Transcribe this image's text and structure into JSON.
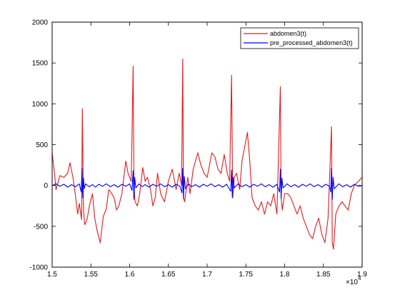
{
  "chart_data": {
    "type": "line",
    "title": "",
    "xlabel": "",
    "ylabel": "",
    "x_exponent_label": "×10",
    "x_exponent_power": "4",
    "xlim": [
      1.5,
      1.9
    ],
    "ylim": [
      -1000,
      2000
    ],
    "x_ticks": [
      1.5,
      1.55,
      1.6,
      1.65,
      1.7,
      1.75,
      1.8,
      1.85,
      1.9
    ],
    "x_tick_labels": [
      "1.5",
      "1.55",
      "1.6",
      "1.65",
      "1.7",
      "1.75",
      "1.8",
      "1.85",
      "1.9"
    ],
    "y_ticks": [
      -1000,
      -500,
      0,
      500,
      1000,
      1500,
      2000
    ],
    "y_tick_labels": [
      "-1000",
      "-500",
      "0",
      "500",
      "1000",
      "1500",
      "2000"
    ],
    "grid": false,
    "legend": "top-right",
    "series": [
      {
        "name": "abdomen3(t)",
        "color": "#e31a1c",
        "x": [
          1.5,
          1.503,
          1.505,
          1.51,
          1.515,
          1.52,
          1.523,
          1.527,
          1.53,
          1.533,
          1.535,
          1.538,
          1.539,
          1.5405,
          1.542,
          1.545,
          1.548,
          1.552,
          1.555,
          1.558,
          1.562,
          1.566,
          1.57,
          1.573,
          1.577,
          1.58,
          1.583,
          1.586,
          1.59,
          1.595,
          1.598,
          1.602,
          1.6045,
          1.6055,
          1.607,
          1.61,
          1.613,
          1.617,
          1.62,
          1.623,
          1.627,
          1.63,
          1.633,
          1.636,
          1.64,
          1.645,
          1.65,
          1.655,
          1.66,
          1.664,
          1.667,
          1.6685,
          1.6695,
          1.671,
          1.675,
          1.678,
          1.682,
          1.685,
          1.688,
          1.692,
          1.696,
          1.7,
          1.703,
          1.706,
          1.71,
          1.714,
          1.718,
          1.722,
          1.726,
          1.729,
          1.7315,
          1.733,
          1.735,
          1.738,
          1.742,
          1.745,
          1.748,
          1.752,
          1.755,
          1.758,
          1.762,
          1.766,
          1.77,
          1.774,
          1.778,
          1.782,
          1.786,
          1.79,
          1.7945,
          1.7955,
          1.797,
          1.8,
          1.804,
          1.808,
          1.812,
          1.816,
          1.82,
          1.824,
          1.828,
          1.832,
          1.836,
          1.84,
          1.844,
          1.848,
          1.852,
          1.856,
          1.8605,
          1.8615,
          1.863,
          1.866,
          1.87,
          1.874,
          1.878,
          1.882,
          1.886,
          1.89,
          1.895,
          1.9
        ],
        "values": [
          400,
          150,
          -50,
          120,
          100,
          150,
          280,
          90,
          -120,
          -350,
          -220,
          -420,
          940,
          -300,
          -480,
          -420,
          -250,
          -100,
          -400,
          -550,
          -700,
          -380,
          -280,
          -50,
          -100,
          -150,
          -300,
          -250,
          -100,
          300,
          150,
          50,
          1460,
          0,
          -200,
          -250,
          -100,
          220,
          50,
          100,
          -50,
          -250,
          -150,
          150,
          -100,
          -200,
          50,
          200,
          -50,
          150,
          0,
          1550,
          -150,
          -200,
          100,
          -100,
          200,
          300,
          400,
          250,
          150,
          100,
          250,
          400,
          350,
          200,
          150,
          380,
          150,
          50,
          1350,
          -150,
          100,
          150,
          -50,
          300,
          450,
          650,
          300,
          -150,
          -250,
          -300,
          -200,
          -350,
          -200,
          -250,
          -100,
          -350,
          1210,
          -150,
          -300,
          -100,
          -100,
          -150,
          -250,
          -350,
          -250,
          -400,
          -500,
          -600,
          -650,
          -500,
          -400,
          -600,
          -700,
          -400,
          720,
          -700,
          -780,
          -350,
          -250,
          -200,
          -250,
          -300,
          -100,
          0,
          50,
          100
        ]
      },
      {
        "name": "pre_processed_abdomen3(t)",
        "color": "#0000ff",
        "x": [
          1.5,
          1.505,
          1.51,
          1.515,
          1.52,
          1.525,
          1.53,
          1.535,
          1.5375,
          1.5385,
          1.5395,
          1.5405,
          1.5415,
          1.543,
          1.548,
          1.552,
          1.556,
          1.56,
          1.565,
          1.57,
          1.575,
          1.58,
          1.585,
          1.59,
          1.595,
          1.6,
          1.603,
          1.6045,
          1.6055,
          1.6065,
          1.608,
          1.612,
          1.616,
          1.62,
          1.625,
          1.63,
          1.635,
          1.64,
          1.645,
          1.65,
          1.655,
          1.66,
          1.665,
          1.6675,
          1.6685,
          1.6695,
          1.6705,
          1.672,
          1.676,
          1.68,
          1.685,
          1.69,
          1.695,
          1.7,
          1.705,
          1.71,
          1.715,
          1.72,
          1.725,
          1.7305,
          1.7315,
          1.7325,
          1.7335,
          1.735,
          1.74,
          1.745,
          1.75,
          1.755,
          1.76,
          1.765,
          1.77,
          1.775,
          1.78,
          1.785,
          1.79,
          1.7935,
          1.7945,
          1.7955,
          1.7965,
          1.798,
          1.803,
          1.808,
          1.813,
          1.818,
          1.823,
          1.828,
          1.833,
          1.838,
          1.843,
          1.848,
          1.853,
          1.858,
          1.8595,
          1.8605,
          1.8615,
          1.8625,
          1.864,
          1.87,
          1.875,
          1.88,
          1.885,
          1.89,
          1.895,
          1.9
        ],
        "values": [
          0,
          20,
          -10,
          15,
          -20,
          10,
          -15,
          20,
          -80,
          210,
          -150,
          90,
          -40,
          20,
          -15,
          10,
          -20,
          15,
          -10,
          20,
          -15,
          10,
          -20,
          15,
          -10,
          20,
          -60,
          180,
          -170,
          100,
          -30,
          20,
          -15,
          10,
          -20,
          15,
          -10,
          20,
          -15,
          10,
          -20,
          15,
          -10,
          -90,
          210,
          -160,
          110,
          -40,
          20,
          -15,
          10,
          -20,
          15,
          -10,
          20,
          -15,
          10,
          -20,
          15,
          -70,
          190,
          -150,
          100,
          -30,
          20,
          -15,
          10,
          -20,
          15,
          -10,
          20,
          -15,
          10,
          -20,
          15,
          -80,
          200,
          -160,
          90,
          -30,
          20,
          -15,
          10,
          -20,
          15,
          -10,
          20,
          -15,
          10,
          -20,
          15,
          -10,
          -80,
          210,
          -170,
          100,
          -40,
          20,
          -15,
          10,
          -20,
          15,
          -10,
          0
        ]
      }
    ]
  }
}
